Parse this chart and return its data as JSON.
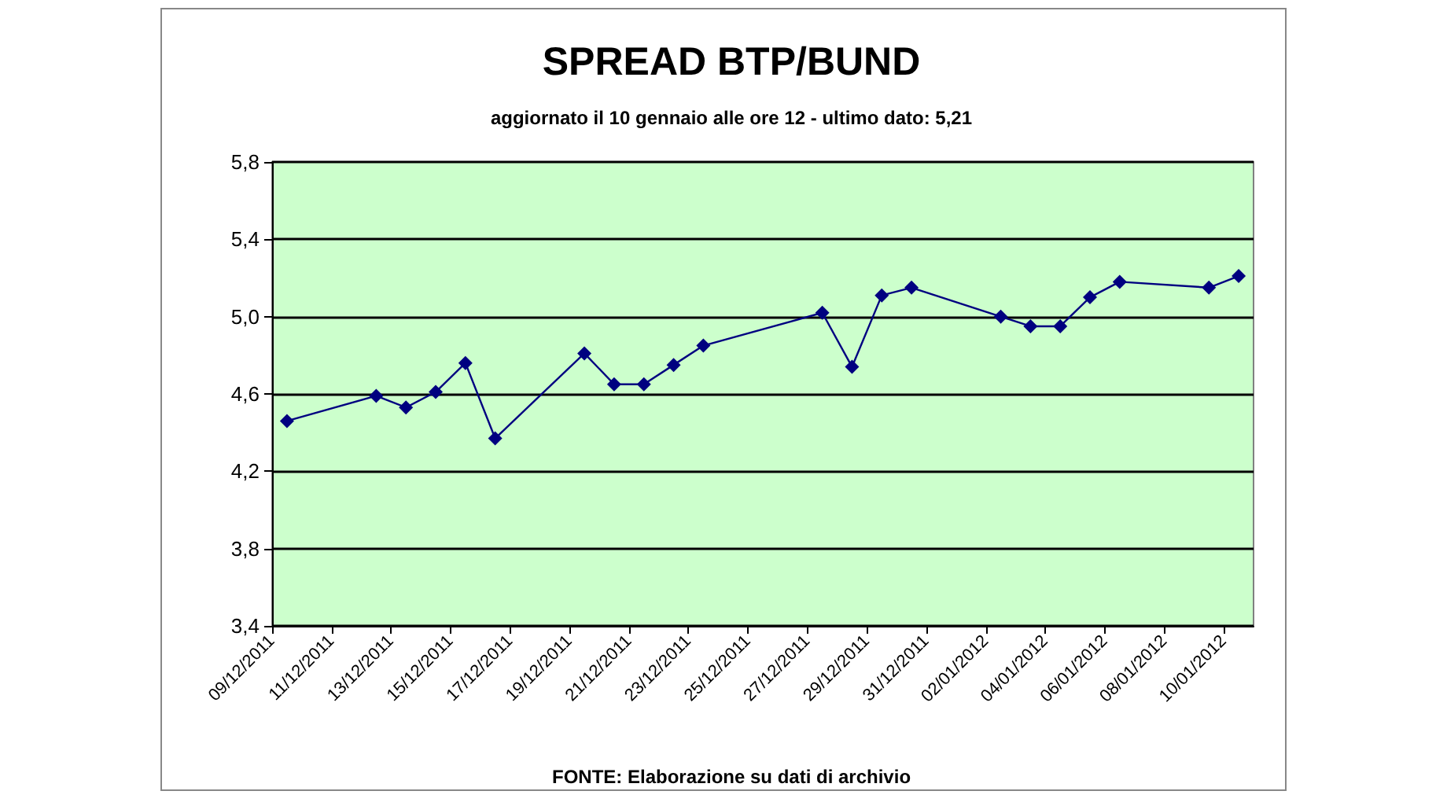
{
  "chart_data": {
    "type": "line",
    "title": "SPREAD BTP/BUND",
    "subtitle": "aggiornato il 10 gennaio alle ore 12 - ultimo dato: 5,21",
    "annotations": [
      "FONTE: Elaborazione su dati di archivio"
    ],
    "x": [
      "2011-12-09T12:00",
      "2011-12-12T12:00",
      "2011-12-13T12:00",
      "2011-12-14T12:00",
      "2011-12-15T12:00",
      "2011-12-16T12:00",
      "2011-12-19T12:00",
      "2011-12-20T12:00",
      "2011-12-21T12:00",
      "2011-12-22T12:00",
      "2011-12-23T12:00",
      "2011-12-27T12:00",
      "2011-12-28T12:00",
      "2011-12-29T12:00",
      "2011-12-30T12:00",
      "2012-01-02T12:00",
      "2012-01-03T12:00",
      "2012-01-04T12:00",
      "2012-01-05T12:00",
      "2012-01-06T12:00",
      "2012-01-09T12:00",
      "2012-01-10T12:00"
    ],
    "series": [
      {
        "color": "#000080",
        "values": [
          4.46,
          4.59,
          4.53,
          4.61,
          4.76,
          4.37,
          4.81,
          4.65,
          4.65,
          4.75,
          4.85,
          5.02,
          4.74,
          5.11,
          5.15,
          5.0,
          4.95,
          4.95,
          5.1,
          5.18,
          5.15,
          5.21
        ]
      }
    ],
    "xlim": [
      "2011-12-09",
      "2012-01-11"
    ],
    "xticks": [
      {
        "value": "2011-12-09",
        "label": "09/12/2011"
      },
      {
        "value": "2011-12-11",
        "label": "11/12/2011"
      },
      {
        "value": "2011-12-13",
        "label": "13/12/2011"
      },
      {
        "value": "2011-12-15",
        "label": "15/12/2011"
      },
      {
        "value": "2011-12-17",
        "label": "17/12/2011"
      },
      {
        "value": "2011-12-19",
        "label": "19/12/2011"
      },
      {
        "value": "2011-12-21",
        "label": "21/12/2011"
      },
      {
        "value": "2011-12-23",
        "label": "23/12/2011"
      },
      {
        "value": "2011-12-25",
        "label": "25/12/2011"
      },
      {
        "value": "2011-12-27",
        "label": "27/12/2011"
      },
      {
        "value": "2011-12-29",
        "label": "29/12/2011"
      },
      {
        "value": "2011-12-31",
        "label": "31/12/2011"
      },
      {
        "value": "2012-01-02",
        "label": "02/01/2012"
      },
      {
        "value": "2012-01-04",
        "label": "04/01/2012"
      },
      {
        "value": "2012-01-06",
        "label": "06/01/2012"
      },
      {
        "value": "2012-01-08",
        "label": "08/01/2012"
      },
      {
        "value": "2012-01-10",
        "label": "10/01/2012"
      }
    ],
    "ylim": [
      3.4,
      5.8
    ],
    "yticks": [
      {
        "value": 3.4,
        "label": "3,4"
      },
      {
        "value": 3.8,
        "label": "3,8"
      },
      {
        "value": 4.2,
        "label": "4,2"
      },
      {
        "value": 4.6,
        "label": "4,6"
      },
      {
        "value": 5.0,
        "label": "5,0"
      },
      {
        "value": 5.4,
        "label": "5,4"
      },
      {
        "value": 5.8,
        "label": "5,8"
      }
    ],
    "grid": "y",
    "marker": "diamond",
    "line_style": "solid"
  }
}
